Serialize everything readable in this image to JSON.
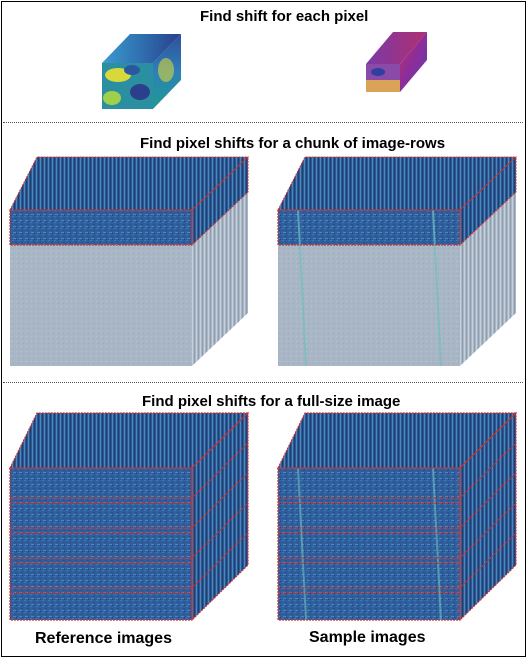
{
  "sections": {
    "pixel": {
      "title": "Find shift for each pixel"
    },
    "chunk": {
      "title": "Find pixel shifts for a chunk of image-rows"
    },
    "full": {
      "title": "Find pixel shifts for a full-size image"
    }
  },
  "captions": {
    "reference": "Reference images",
    "sample": "Sample images"
  },
  "colors": {
    "stack_blue": "#2f5f9c",
    "stack_dark": "#1f3f6e",
    "chunk_gray": "#a9b6c6",
    "chunk_outline": "#d03030",
    "viridis_teal": "#1f9b8f",
    "viridis_yellow": "#e6e633",
    "plasma_magenta": "#b03080"
  }
}
